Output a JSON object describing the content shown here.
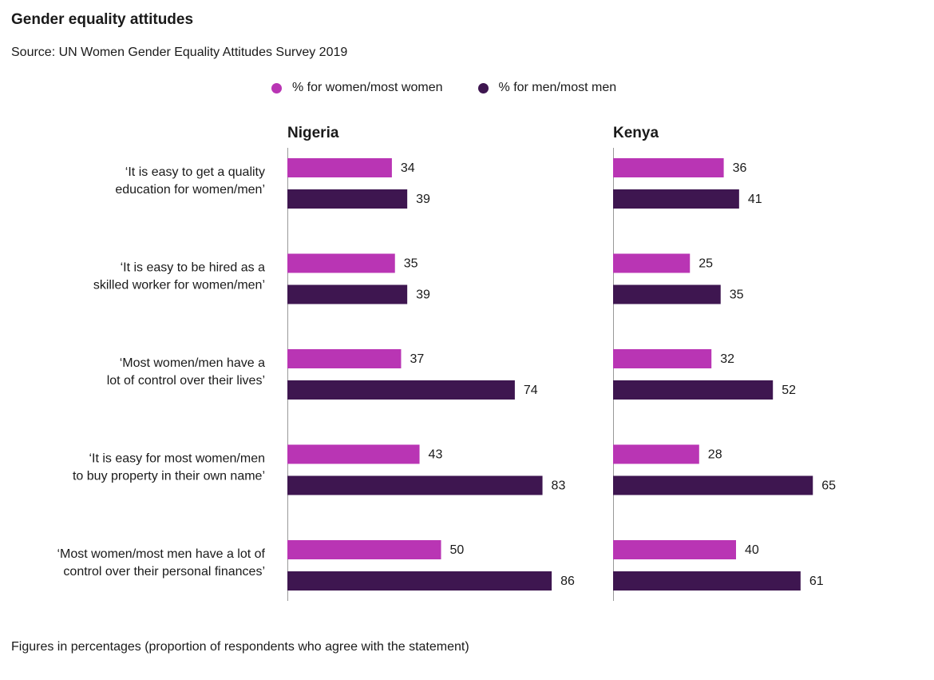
{
  "title": "Gender equality attitudes",
  "source": "Source: UN Women Gender Equality Attitudes Survey 2019",
  "footer": "Figures in percentages (proportion of respondents who agree with the statement)",
  "colors": {
    "women": "#b935b4",
    "men": "#3e1650",
    "axis": "#999999",
    "text": "#1a1a1a"
  },
  "chart_data": {
    "type": "bar",
    "orientation": "horizontal",
    "categories": [
      [
        "‘It is easy to get a quality",
        "education for women/men’"
      ],
      [
        "‘It is easy to be hired as a",
        "skilled worker for women/men’"
      ],
      [
        "‘Most women/men have a",
        "lot of control over their lives’"
      ],
      [
        "‘It is easy for most women/men",
        "to buy property in their own name’"
      ],
      [
        "‘Most women/most men have a lot of",
        "control over their personal finances’"
      ]
    ],
    "series_names": [
      "% for women/most women",
      "% for men/most men"
    ],
    "legend_position": "top",
    "panels": [
      {
        "name": "Nigeria",
        "series": [
          {
            "values": [
              34,
              35,
              37,
              43,
              50
            ]
          },
          {
            "values": [
              39,
              39,
              74,
              83,
              86
            ]
          }
        ]
      },
      {
        "name": "Kenya",
        "series": [
          {
            "values": [
              36,
              25,
              32,
              28,
              40
            ]
          },
          {
            "values": [
              41,
              35,
              52,
              65,
              61
            ]
          }
        ]
      }
    ],
    "xlim": [
      0,
      100
    ],
    "grid": false,
    "data_labels": true
  }
}
